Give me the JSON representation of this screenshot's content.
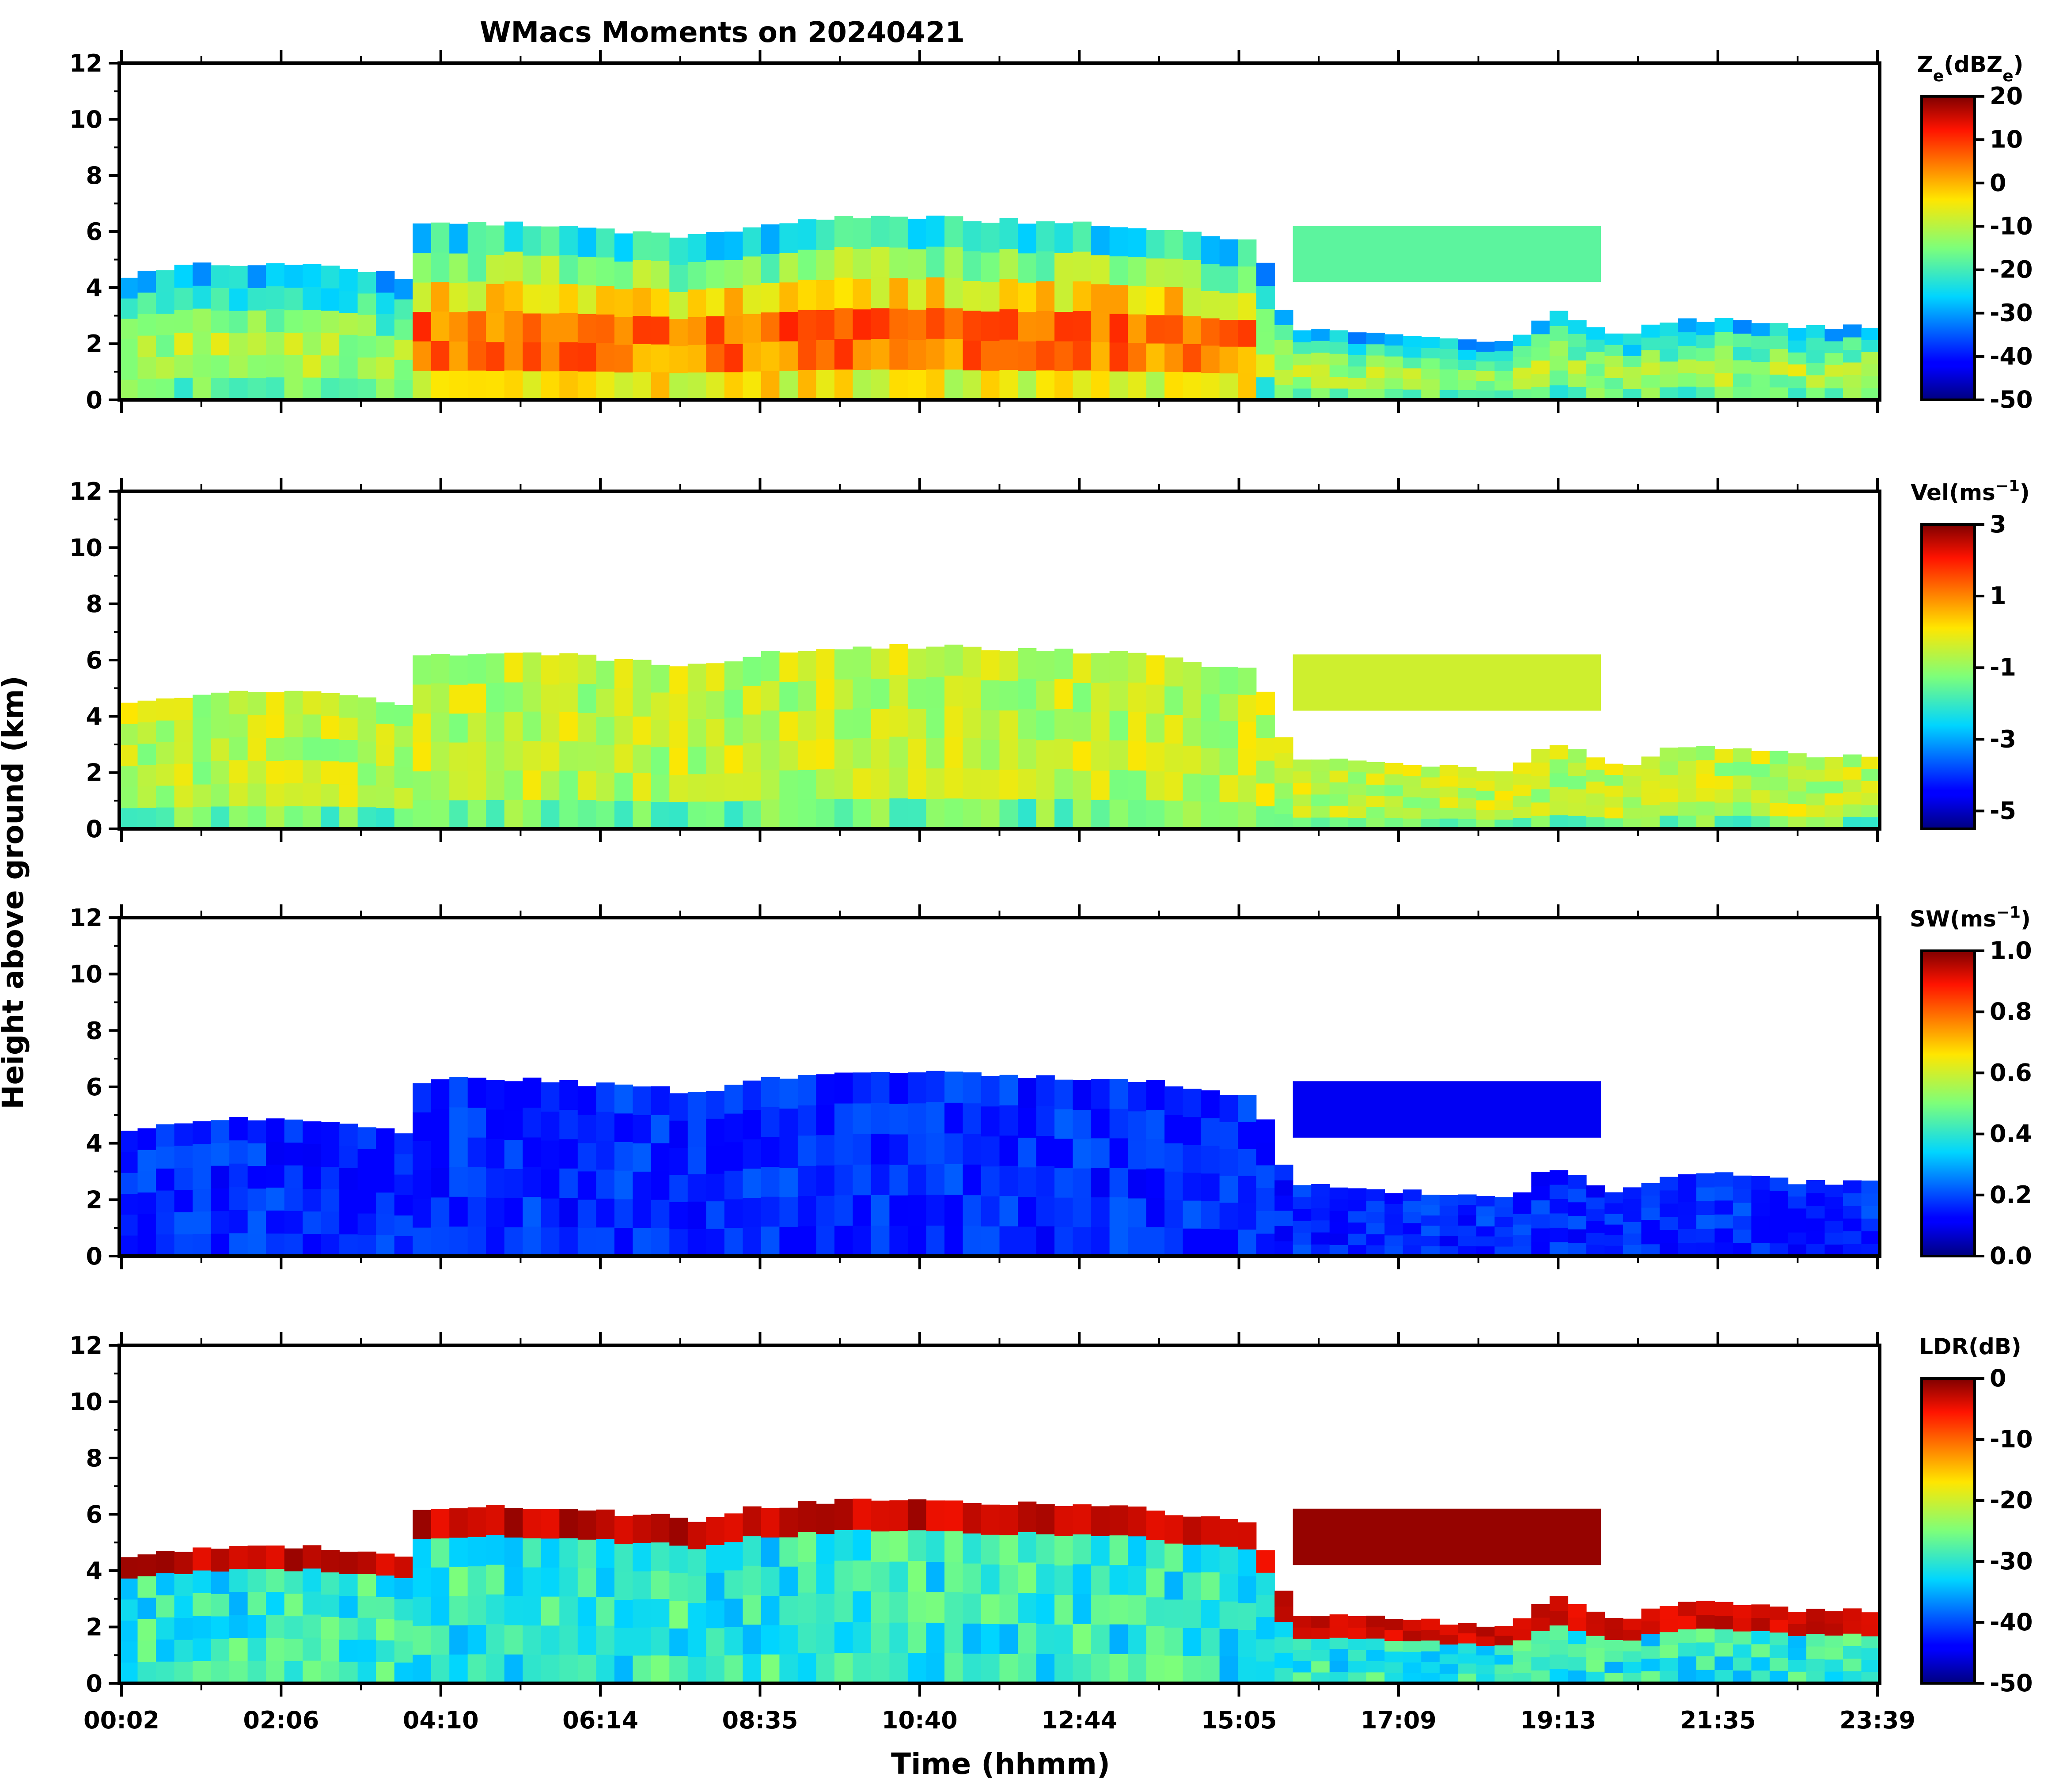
{
  "chart_data": {
    "type": "heatmap",
    "title": "WMacs Moments on 20240421",
    "xlabel": "Time (hhmm)",
    "ylabel": "Height above ground (km)",
    "x_ticklabels": [
      "00:02",
      "02:06",
      "04:10",
      "06:14",
      "08:35",
      "10:40",
      "12:44",
      "15:05",
      "17:09",
      "19:13",
      "21:35",
      "23:39"
    ],
    "xlim_hours": [
      0.0,
      24.0
    ],
    "ylim_km": [
      0,
      12
    ],
    "y_ticks": [
      0,
      2,
      4,
      6,
      8,
      10,
      12
    ],
    "cloud_top_km": [
      {
        "t": 0.0,
        "top": 4.4,
        "base": 0.0
      },
      {
        "t": 0.5,
        "top": 4.6,
        "base": 0.0
      },
      {
        "t": 1.0,
        "top": 4.8,
        "base": 0.0
      },
      {
        "t": 2.0,
        "top": 4.9,
        "base": 0.0
      },
      {
        "t": 3.0,
        "top": 4.8,
        "base": 0.0
      },
      {
        "t": 3.9,
        "top": 4.4,
        "base": 0.0
      },
      {
        "t": 4.0,
        "top": 6.2,
        "base": 0.0
      },
      {
        "t": 5.0,
        "top": 6.3,
        "base": 0.0
      },
      {
        "t": 6.0,
        "top": 6.2,
        "base": 0.0
      },
      {
        "t": 7.0,
        "top": 6.0,
        "base": 0.0
      },
      {
        "t": 8.0,
        "top": 5.8,
        "base": 0.0
      },
      {
        "t": 8.6,
        "top": 6.2,
        "base": 0.0
      },
      {
        "t": 10.0,
        "top": 6.5,
        "base": 0.0
      },
      {
        "t": 11.0,
        "top": 6.5,
        "base": 0.0
      },
      {
        "t": 12.0,
        "top": 6.4,
        "base": 0.0
      },
      {
        "t": 13.0,
        "top": 6.3,
        "base": 0.0
      },
      {
        "t": 14.0,
        "top": 6.2,
        "base": 0.0
      },
      {
        "t": 15.5,
        "top": 5.6,
        "base": 0.0
      },
      {
        "t": 16.0,
        "top": 2.5,
        "base": 0.0
      },
      {
        "t": 17.0,
        "top": 2.4,
        "base": 0.0
      },
      {
        "t": 18.0,
        "top": 2.2,
        "base": 0.0
      },
      {
        "t": 19.0,
        "top": 2.0,
        "base": 0.0
      },
      {
        "t": 19.5,
        "top": 3.2,
        "base": 0.0
      },
      {
        "t": 20.5,
        "top": 2.2,
        "base": 0.0
      },
      {
        "t": 21.0,
        "top": 2.8,
        "base": 0.0
      },
      {
        "t": 22.0,
        "top": 2.9,
        "base": 0.0
      },
      {
        "t": 23.0,
        "top": 2.6,
        "base": 0.0
      },
      {
        "t": 24.0,
        "top": 2.6,
        "base": 0.0
      }
    ],
    "upper_cloud_layer": {
      "t_start": 16.0,
      "t_end": 20.2,
      "base_km": 4.2,
      "top_km": 6.2
    },
    "panels": [
      {
        "name": "reflectivity",
        "colorbar_label": "Ze(dBZe)",
        "cb_main": "Z",
        "cb_sub1": "e",
        "cb_mid": "(dBZ",
        "cb_sub2": "e",
        "cb_end": ")",
        "vmin": -50,
        "vmax": 20,
        "cb_ticks": [
          "20",
          "10",
          "0",
          "-10",
          "-20",
          "-30",
          "-40",
          "-50"
        ],
        "typical_value": "-10 to 10 dBZe in thick cloud, -30 to -20 at edges"
      },
      {
        "name": "velocity",
        "colorbar_label": "Vel(ms-1)",
        "cb_main": "Vel(ms",
        "cb_sup": "−1",
        "cb_end": ")",
        "vmin": -5.5,
        "vmax": 3,
        "cb_ticks": [
          "3",
          "1",
          "-1",
          "-3",
          "-5"
        ],
        "typical_value": "about -1 to 0 m/s"
      },
      {
        "name": "spectrum_width",
        "colorbar_label": "SW(ms-1)",
        "cb_main": "SW(ms",
        "cb_sup": "−1",
        "cb_end": ")",
        "vmin": 0,
        "vmax": 1,
        "cb_ticks": [
          "1.0",
          "0.8",
          "0.6",
          "0.4",
          "0.2",
          "0.0"
        ],
        "typical_value": "about 0.05 to 0.2 m/s"
      },
      {
        "name": "ldr",
        "colorbar_label": "LDR(dB)",
        "cb_main": "LDR(dB)",
        "vmin": -50,
        "vmax": 0,
        "cb_ticks": [
          "0",
          "-10",
          "-20",
          "-30",
          "-40",
          "-50"
        ],
        "typical_value": "about -30 dB inside cloud, near 0 dB at cloud top"
      }
    ]
  }
}
